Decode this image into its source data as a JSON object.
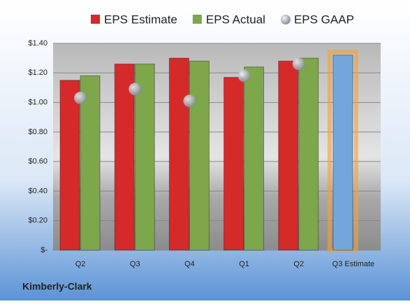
{
  "chart_data": {
    "type": "bar",
    "categories": [
      "Q2",
      "Q3",
      "Q4",
      "Q1",
      "Q2",
      "Q3 Estimate"
    ],
    "series": [
      {
        "name": "EPS Estimate",
        "type": "bar",
        "color": "#d42a2a",
        "values": [
          1.15,
          1.26,
          1.3,
          1.17,
          1.28,
          1.32
        ]
      },
      {
        "name": "EPS Actual",
        "type": "bar",
        "color": "#7ea64a",
        "values": [
          1.18,
          1.26,
          1.28,
          1.24,
          1.3,
          null
        ]
      },
      {
        "name": "EPS GAAP",
        "type": "scatter",
        "color": "#a9b2bd",
        "values": [
          1.03,
          1.09,
          1.01,
          1.18,
          1.26,
          null
        ]
      }
    ],
    "highlight_color": "#74a6dc",
    "ylim": [
      0,
      1.4
    ],
    "yticks": [
      {
        "value": 0,
        "label": "$-"
      },
      {
        "value": 0.2,
        "label": "$0.20"
      },
      {
        "value": 0.4,
        "label": "$0.40"
      },
      {
        "value": 0.6,
        "label": "$0.60"
      },
      {
        "value": 0.8,
        "label": "$0.80"
      },
      {
        "value": 1.0,
        "label": "$1.00"
      },
      {
        "value": 1.2,
        "label": "$1.20"
      },
      {
        "value": 1.4,
        "label": "$1.40"
      }
    ],
    "grid": true,
    "footer": "Kimberly-Clark"
  }
}
